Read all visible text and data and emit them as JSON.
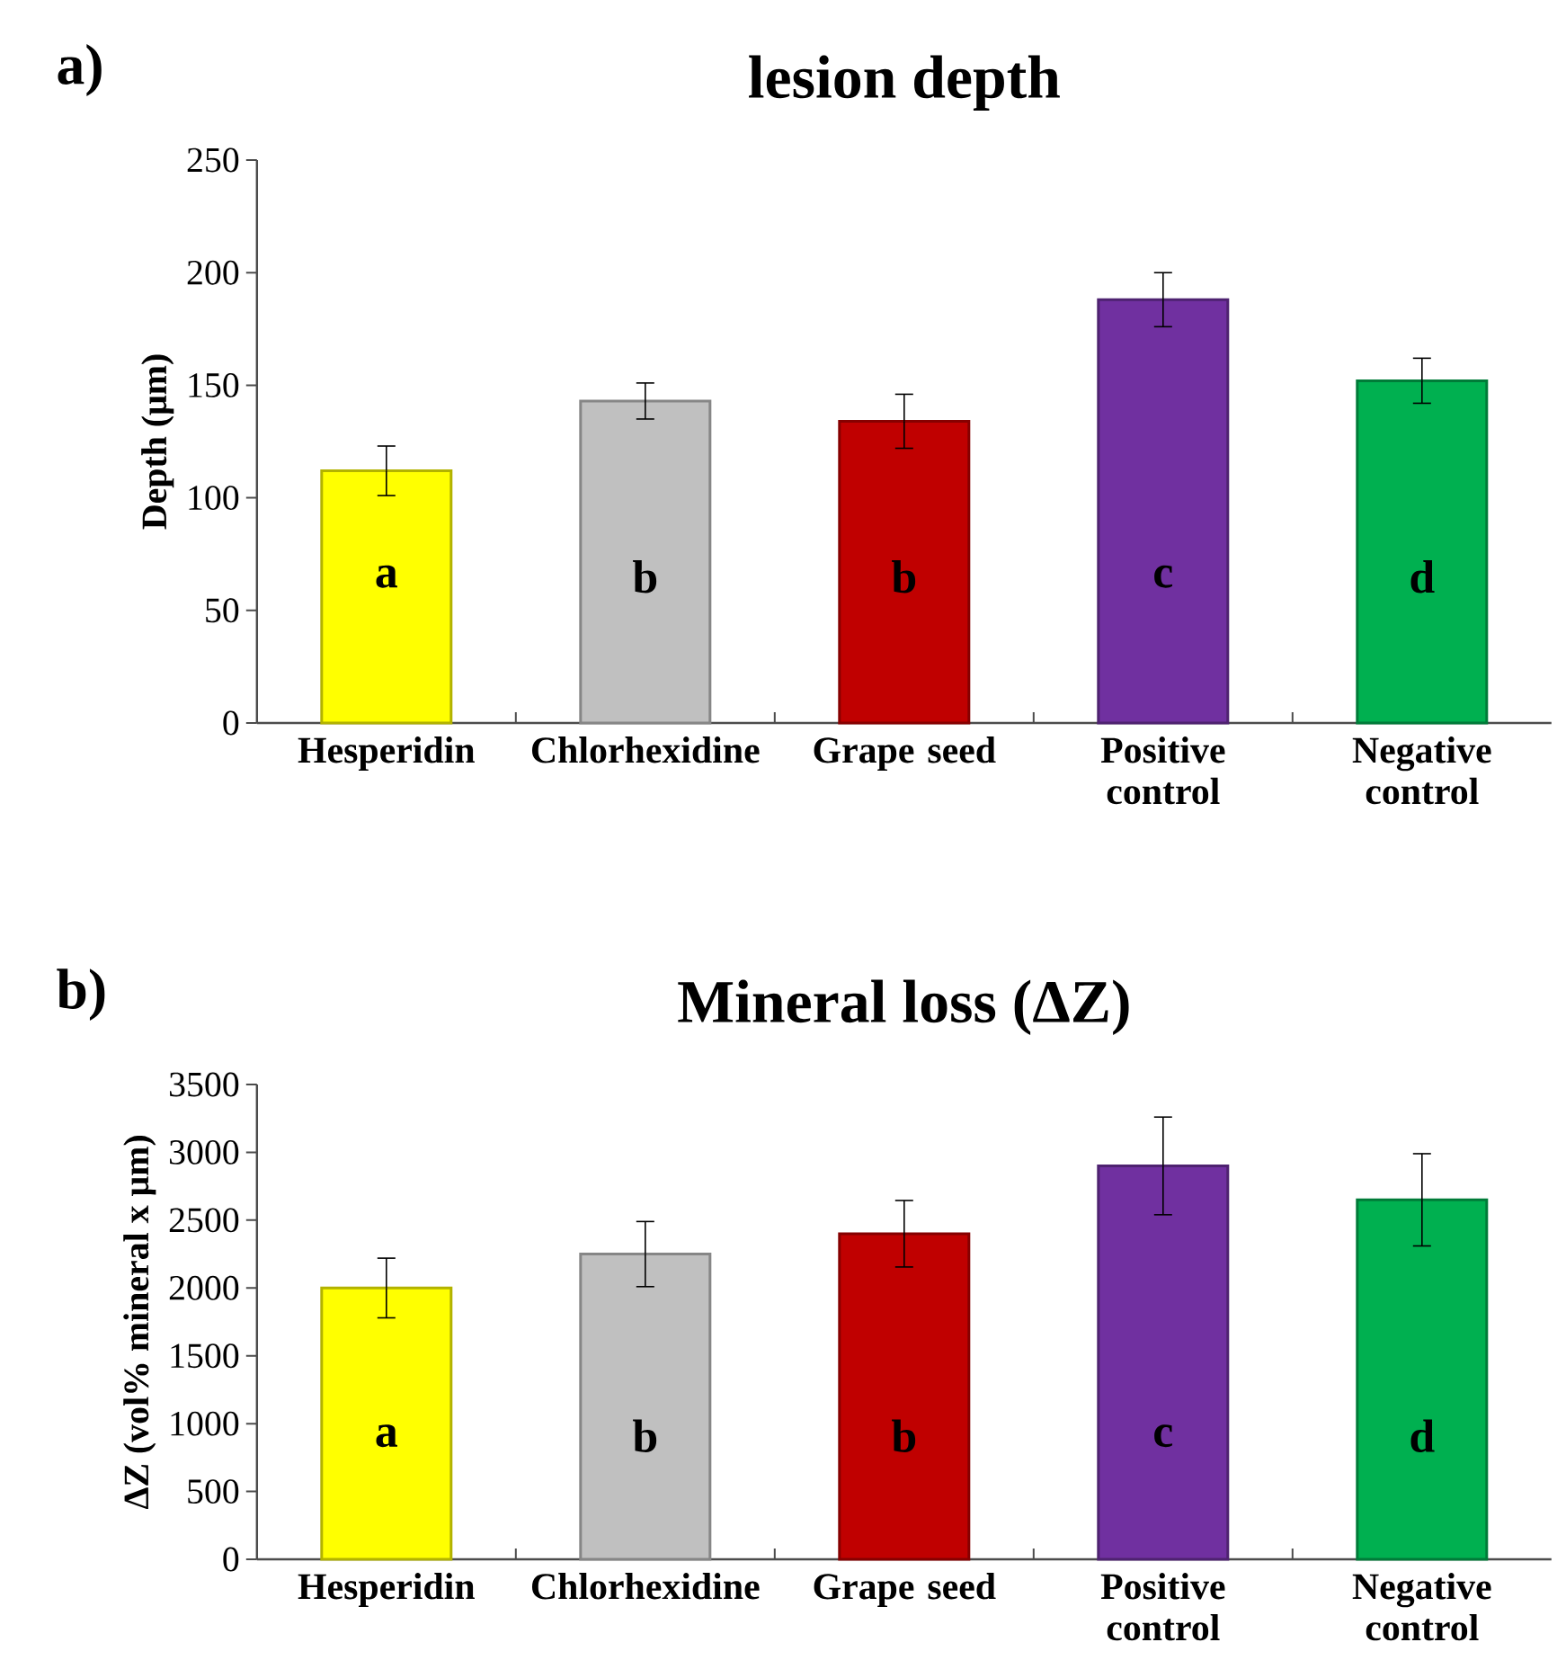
{
  "chart_data": [
    {
      "type": "bar",
      "title": "lesion depth",
      "ylabel": "Depth (μm)",
      "categories": [
        "Hesperidin",
        "Chlorhexidine",
        "Grape seed",
        "Positive control",
        "Negative control"
      ],
      "values": [
        112,
        143,
        134,
        188,
        152
      ],
      "errors": [
        11,
        8,
        12,
        12,
        10
      ],
      "colors": [
        "#ffff00",
        "#c0c0c0",
        "#c00000",
        "#7030a0",
        "#00b050"
      ],
      "ylim": [
        0,
        250
      ],
      "yticks": [
        0,
        50,
        100,
        150,
        200,
        250
      ],
      "annotations": [
        "a)",
        "a",
        "b",
        "b",
        "c",
        "d"
      ]
    },
    {
      "type": "bar",
      "title": "Mineral loss (ΔZ)",
      "ylabel": "ΔZ (vol% mineral x μm)",
      "categories": [
        "Hesperidin",
        "Chlorhexidine",
        "Grape seed",
        "Positive control",
        "Negative control"
      ],
      "values": [
        2000,
        2250,
        2400,
        2900,
        2650
      ],
      "errors": [
        220,
        240,
        245,
        360,
        340
      ],
      "colors": [
        "#ffff00",
        "#c0c0c0",
        "#c00000",
        "#7030a0",
        "#00b050"
      ],
      "ylim": [
        0,
        3500
      ],
      "yticks": [
        0,
        500,
        1000,
        1500,
        2000,
        2500,
        3000,
        3500
      ],
      "annotations": [
        "b)",
        "a",
        "b",
        "b",
        "c",
        "d"
      ]
    }
  ]
}
